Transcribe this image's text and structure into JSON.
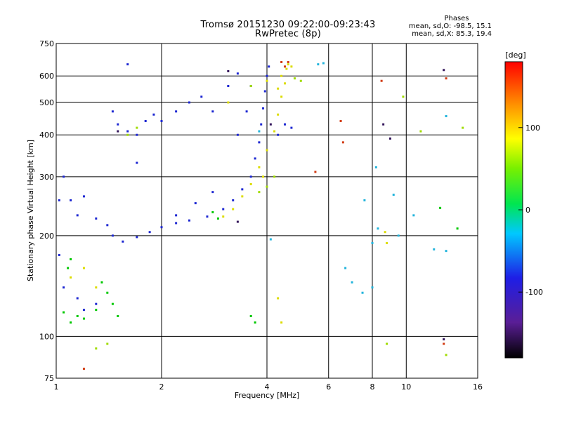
{
  "header": {
    "title_line1": "Tromsø 20151230 09:22:00-09:23:43",
    "title_line2": "RwPretec (8p)"
  },
  "stats": {
    "heading": "Phases",
    "line_o": "mean, sd,O: -98.5, 15.1",
    "line_x": "mean, sd,X:  85.3, 19.4"
  },
  "colorbar": {
    "unit_label": "[deg]",
    "range": [
      -180,
      180
    ],
    "tick_values": [
      100,
      0,
      -100
    ],
    "tick_labels": [
      "100",
      "0",
      "-100"
    ]
  },
  "chart_data": {
    "type": "scatter",
    "xlabel": "Frequency [MHz]",
    "ylabel": "Stationary phase Virtual Height [km]",
    "x_scale": "log",
    "y_scale": "log",
    "xlim": [
      1,
      16
    ],
    "ylim": [
      75,
      750
    ],
    "x_ticks": [
      1,
      2,
      4,
      6,
      8,
      10,
      16
    ],
    "y_ticks": [
      75,
      100,
      200,
      300,
      400,
      500,
      600,
      750
    ],
    "x_gridlines": [
      2,
      4,
      6,
      8,
      10
    ],
    "y_gridlines": [
      100,
      200,
      300,
      400,
      500,
      600
    ],
    "grid": true,
    "series": [
      {
        "color": "#1e28d2",
        "points": [
          [
            1.02,
            255
          ],
          [
            1.1,
            255
          ],
          [
            1.2,
            262
          ],
          [
            1.15,
            230
          ],
          [
            1.3,
            225
          ],
          [
            1.4,
            215
          ],
          [
            1.45,
            200
          ],
          [
            1.55,
            192
          ],
          [
            1.7,
            198
          ],
          [
            1.85,
            205
          ],
          [
            2.0,
            212
          ],
          [
            2.2,
            218
          ],
          [
            2.4,
            222
          ],
          [
            2.7,
            228
          ],
          [
            3.0,
            240
          ],
          [
            3.2,
            255
          ],
          [
            3.4,
            275
          ],
          [
            3.6,
            300
          ],
          [
            3.7,
            340
          ],
          [
            3.8,
            380
          ],
          [
            3.85,
            430
          ],
          [
            3.9,
            480
          ],
          [
            3.95,
            540
          ],
          [
            4.0,
            600
          ],
          [
            4.05,
            640
          ],
          [
            3.3,
            400
          ],
          [
            3.5,
            470
          ],
          [
            3.6,
            560
          ],
          [
            3.3,
            610
          ],
          [
            3.1,
            560
          ],
          [
            2.4,
            500
          ],
          [
            2.6,
            520
          ],
          [
            2.8,
            470
          ],
          [
            2.2,
            470
          ],
          [
            2.0,
            440
          ],
          [
            1.45,
            470
          ],
          [
            1.5,
            430
          ],
          [
            1.6,
            410
          ],
          [
            1.7,
            400
          ],
          [
            1.8,
            440
          ],
          [
            1.9,
            460
          ],
          [
            1.05,
            140
          ],
          [
            1.15,
            130
          ],
          [
            1.2,
            120
          ],
          [
            1.3,
            125
          ],
          [
            1.02,
            175
          ],
          [
            1.05,
            300
          ],
          [
            4.3,
            400
          ],
          [
            4.5,
            430
          ],
          [
            4.7,
            420
          ],
          [
            1.7,
            330
          ],
          [
            1.6,
            650
          ],
          [
            2.2,
            230
          ],
          [
            2.5,
            250
          ],
          [
            2.8,
            270
          ]
        ]
      },
      {
        "color": "#dcdc00",
        "points": [
          [
            3.0,
            228
          ],
          [
            3.2,
            240
          ],
          [
            3.4,
            262
          ],
          [
            3.6,
            285
          ],
          [
            3.8,
            320
          ],
          [
            4.0,
            360
          ],
          [
            4.2,
            410
          ],
          [
            4.3,
            460
          ],
          [
            4.4,
            520
          ],
          [
            4.5,
            570
          ],
          [
            4.55,
            630
          ],
          [
            4.6,
            650
          ],
          [
            4.4,
            600
          ],
          [
            4.3,
            550
          ],
          [
            3.9,
            300
          ],
          [
            1.2,
            160
          ],
          [
            1.1,
            150
          ],
          [
            1.3,
            140
          ],
          [
            4.3,
            130
          ],
          [
            4.4,
            110
          ],
          [
            8.8,
            190
          ],
          [
            8.7,
            205
          ],
          [
            3.1,
            500
          ],
          [
            4.7,
            640
          ],
          [
            4.0,
            580
          ]
        ]
      },
      {
        "color": "#00c800",
        "points": [
          [
            1.05,
            118
          ],
          [
            1.1,
            110
          ],
          [
            1.15,
            115
          ],
          [
            1.2,
            113
          ],
          [
            1.3,
            120
          ],
          [
            1.4,
            135
          ],
          [
            1.45,
            125
          ],
          [
            1.5,
            115
          ],
          [
            1.35,
            145
          ],
          [
            3.6,
            115
          ],
          [
            3.7,
            110
          ],
          [
            2.8,
            235
          ],
          [
            2.9,
            225
          ],
          [
            1.1,
            170
          ],
          [
            1.08,
            160
          ],
          [
            12.5,
            242
          ],
          [
            14,
            210
          ]
        ]
      },
      {
        "color": "#d23c14",
        "points": [
          [
            6.5,
            440
          ],
          [
            6.6,
            380
          ],
          [
            8.5,
            580
          ],
          [
            13,
            590
          ],
          [
            4.6,
            660
          ],
          [
            4.5,
            640
          ],
          [
            12.8,
            95
          ],
          [
            1.2,
            80
          ],
          [
            5.5,
            310
          ],
          [
            4.4,
            660
          ]
        ]
      },
      {
        "color": "#22b4dc",
        "points": [
          [
            5.6,
            650
          ],
          [
            5.8,
            655
          ],
          [
            6.7,
            160
          ],
          [
            7.0,
            145
          ],
          [
            7.5,
            135
          ],
          [
            8.0,
            140
          ],
          [
            7.6,
            255
          ],
          [
            8.3,
            210
          ],
          [
            9.2,
            265
          ],
          [
            8.0,
            190
          ],
          [
            10.5,
            230
          ],
          [
            12.0,
            182
          ],
          [
            13.0,
            180
          ],
          [
            13.0,
            455
          ],
          [
            8.2,
            320
          ],
          [
            9.5,
            200
          ],
          [
            4.1,
            195
          ],
          [
            3.8,
            410
          ]
        ]
      },
      {
        "color": "#a0dc00",
        "points": [
          [
            1.6,
            400
          ],
          [
            1.7,
            420
          ],
          [
            3.6,
            560
          ],
          [
            5.0,
            580
          ],
          [
            4.8,
            590
          ],
          [
            4.2,
            300
          ],
          [
            4.0,
            280
          ],
          [
            3.8,
            270
          ],
          [
            9.8,
            520
          ],
          [
            11.0,
            410
          ],
          [
            14.5,
            420
          ],
          [
            1.3,
            92
          ],
          [
            1.4,
            95
          ],
          [
            8.8,
            95
          ],
          [
            13.0,
            88
          ]
        ]
      },
      {
        "color": "#32145a",
        "points": [
          [
            12.8,
            625
          ],
          [
            8.6,
            430
          ],
          [
            9.0,
            390
          ],
          [
            12.8,
            98
          ],
          [
            1.5,
            410
          ],
          [
            3.1,
            620
          ],
          [
            3.3,
            220
          ],
          [
            4.1,
            430
          ]
        ]
      }
    ]
  }
}
